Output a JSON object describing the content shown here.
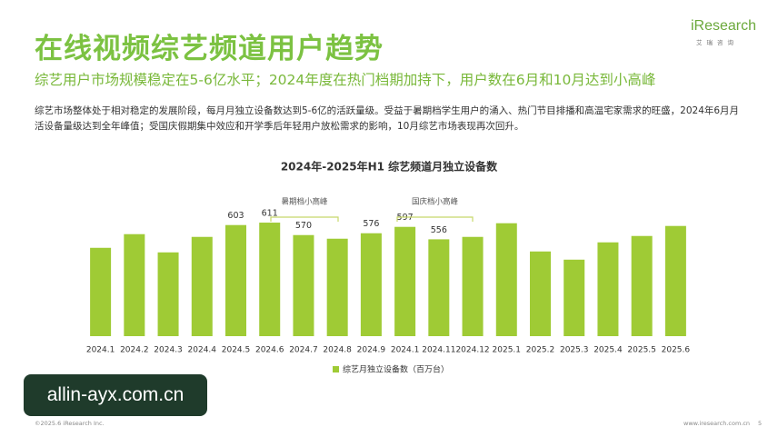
{
  "header": {
    "title": "在线视频综艺频道用户趋势",
    "subtitle": "综艺用户市场规模稳定在5-6亿水平；2024年度在热门档期加持下，用户数在6月和10月达到小高峰",
    "paragraph": "综艺市场整体处于相对稳定的发展阶段，每月月独立设备数达到5-6亿的活跃量级。受益于暑期档学生用户的涌入、热门节目排播和高温宅家需求的旺盛，2024年6月月活设备量级达到全年峰值；受国庆假期集中效应和开学季后年轻用户放松需求的影响，10月综艺市场表现再次回升。",
    "logo": "iResearch",
    "logo_sub": "艾瑞咨询"
  },
  "chart_data": {
    "type": "bar",
    "title": "2024年-2025年H1 综艺频道月独立设备数",
    "categories": [
      "2024.1",
      "2024.2",
      "2024.3",
      "2024.4",
      "2024.5",
      "2024.6",
      "2024.7",
      "2024.8",
      "2024.9",
      "2024.1",
      "2024.11",
      "2024.12",
      "2025.1",
      "2025.2",
      "2025.3",
      "2025.4",
      "2025.5",
      "2025.6"
    ],
    "series": [
      {
        "name": "综艺月独立设备数（百万台）",
        "color": "#9fcb35",
        "values": [
          528,
          573,
          513,
          564,
          603,
          611,
          570,
          558,
          576,
          597,
          556,
          564,
          609,
          516,
          489,
          546,
          567,
          600
        ],
        "value_labels": [
          null,
          null,
          null,
          null,
          "603",
          "611",
          "570",
          null,
          "576",
          "597",
          "556",
          null,
          null,
          null,
          null,
          null,
          null,
          null
        ]
      }
    ],
    "ylim": [
      237,
      650
    ],
    "annotations": [
      "暑期档小高峰",
      "国庆档小高峰"
    ]
  },
  "footer": {
    "copyright": "©2025.6 iResearch Inc.",
    "website": "www.iresearch.com.cn",
    "page": "5"
  },
  "watermark": "allin-ayx.com.cn"
}
